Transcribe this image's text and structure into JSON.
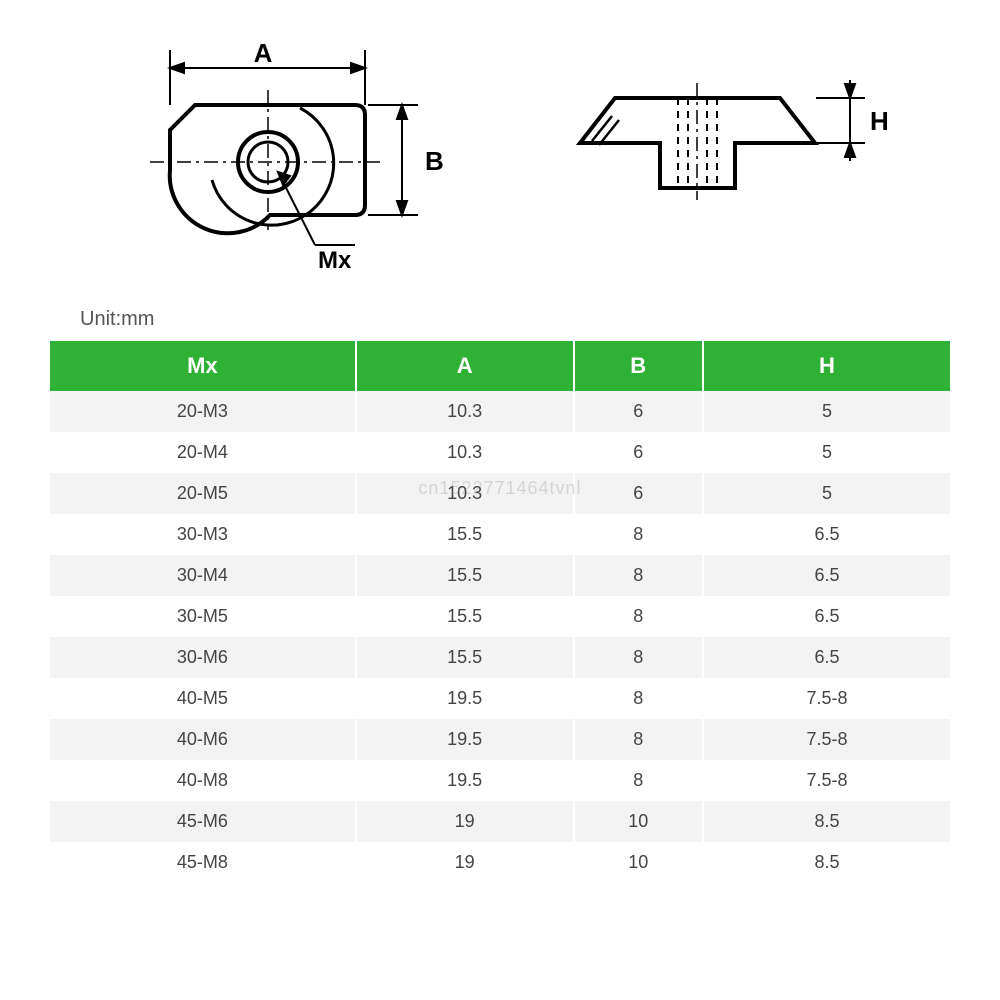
{
  "unit_label": "Unit:mm",
  "watermark": "cn1522771464tvnl",
  "diagram": {
    "top_view": {
      "dim_A_label": "A",
      "dim_B_label": "B",
      "thread_label": "Mx",
      "stroke": "#000000",
      "fill": "#ffffff"
    },
    "side_view": {
      "dim_H_label": "H",
      "stroke": "#000000",
      "hidden_stroke": "#000000"
    }
  },
  "table": {
    "header_bg": "#2fb135",
    "header_fg": "#ffffff",
    "row_alt_bg": "#f3f3f3",
    "columns": [
      "Mx",
      "A",
      "B",
      "H"
    ],
    "rows": [
      [
        "20-M3",
        "10.3",
        "6",
        "5"
      ],
      [
        "20-M4",
        "10.3",
        "6",
        "5"
      ],
      [
        "20-M5",
        "10.3",
        "6",
        "5"
      ],
      [
        "30-M3",
        "15.5",
        "8",
        "6.5"
      ],
      [
        "30-M4",
        "15.5",
        "8",
        "6.5"
      ],
      [
        "30-M5",
        "15.5",
        "8",
        "6.5"
      ],
      [
        "30-M6",
        "15.5",
        "8",
        "6.5"
      ],
      [
        "40-M5",
        "19.5",
        "8",
        "7.5-8"
      ],
      [
        "40-M6",
        "19.5",
        "8",
        "7.5-8"
      ],
      [
        "40-M8",
        "19.5",
        "8",
        "7.5-8"
      ],
      [
        "45-M6",
        "19",
        "10",
        "8.5"
      ],
      [
        "45-M8",
        "19",
        "10",
        "8.5"
      ]
    ]
  }
}
